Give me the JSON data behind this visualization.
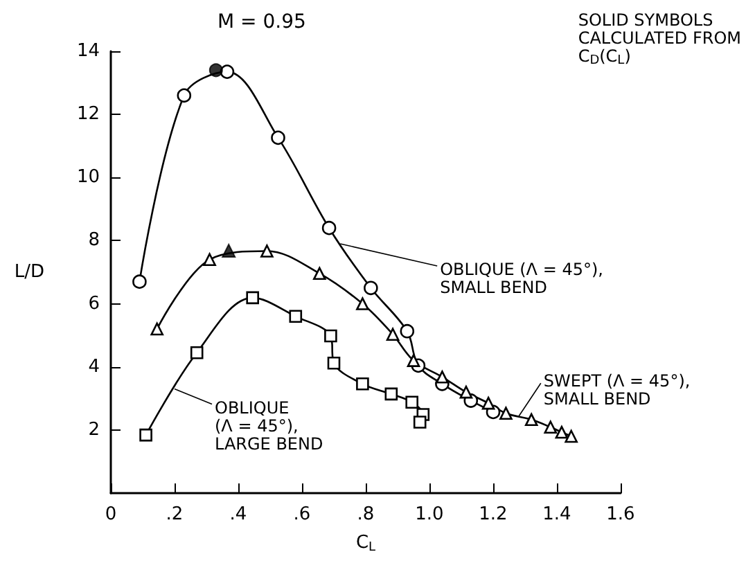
{
  "chart_data": {
    "type": "line",
    "title": "M = 0.95",
    "xlabel": "C$_{L}$",
    "ylabel": "L/D",
    "xlim": [
      0,
      1.6
    ],
    "xticks": [
      0,
      {
        "value": 0.2,
        "label": ".2"
      },
      {
        "value": 0.4,
        "label": ".4"
      },
      {
        "value": 0.6,
        "label": ".6"
      },
      {
        "value": 0.8,
        "label": ".8"
      },
      {
        "value": 1.0,
        "label": "1.0"
      },
      {
        "value": 1.2,
        "label": "1.2"
      },
      {
        "value": 1.4,
        "label": "1.4"
      },
      {
        "value": 1.6,
        "label": "1.6"
      }
    ],
    "ylim": [
      0,
      14
    ],
    "yticks": [
      2,
      4,
      6,
      8,
      10,
      12,
      14
    ],
    "line_style": "solid",
    "series": [
      {
        "color": "#000000",
        "marker": "circle",
        "x": [
          0.09,
          0.23,
          0.365,
          0.525,
          0.685,
          0.816,
          0.93,
          0.965,
          1.04,
          1.13,
          1.2
        ],
        "values": [
          6.7,
          12.6,
          13.35,
          11.26,
          8.4,
          6.5,
          5.13,
          4.04,
          3.46,
          2.93,
          2.57
        ]
      },
      {
        "color": "#000000",
        "marker": "triangle",
        "x": [
          0.145,
          0.31,
          0.49,
          0.655,
          0.79,
          0.885,
          0.95,
          1.04,
          1.115,
          1.185,
          1.24,
          1.32,
          1.38,
          1.415,
          1.445
        ],
        "values": [
          5.2,
          7.4,
          7.67,
          6.96,
          6.0,
          5.03,
          4.2,
          3.68,
          3.2,
          2.85,
          2.53,
          2.33,
          2.09,
          1.93,
          1.8
        ]
      },
      {
        "color": "#000000",
        "marker": "square",
        "x": [
          0.11,
          0.27,
          0.445,
          0.58,
          0.69,
          0.7,
          0.79,
          0.88,
          0.945,
          0.98,
          0.97
        ],
        "values": [
          1.84,
          4.45,
          6.19,
          5.6,
          4.98,
          4.12,
          3.46,
          3.14,
          2.88,
          2.49,
          2.25
        ]
      },
      {
        "type": "scatter",
        "color": "#000000",
        "marker": "circle",
        "x": [
          0.33
        ],
        "values": [
          13.4
        ]
      },
      {
        "type": "scatter",
        "color": "#000000",
        "marker": "triangle",
        "x": [
          0.37
        ],
        "values": [
          7.68
        ]
      }
    ],
    "annotations": [
      "SOLID SYMBOLS\nCALCULATED FROM\nC$_{D}$(C$_{L}$)",
      {
        "text": "OBLIQUE (Λ = 45°),\nSMALL BEND",
        "x": 0.72,
        "y": 7.9
      },
      {
        "text": "SWEPT (Λ = 45°),\nSMALL BEND",
        "x": 1.28,
        "y": 2.43
      },
      {
        "text": "OBLIQUE\n(Λ = 45°),\nLARGE BEND",
        "x": 0.2,
        "y": 3.3
      }
    ]
  }
}
